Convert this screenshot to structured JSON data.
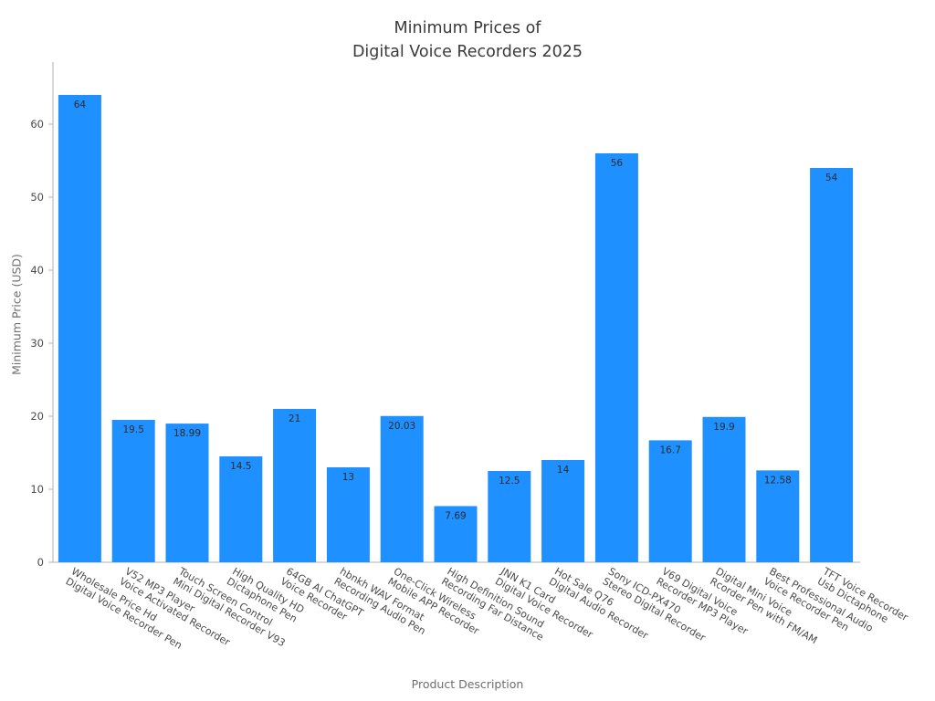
{
  "figure": {
    "title_lines": [
      "Minimum Prices of",
      "Digital Voice Recorders 2025"
    ],
    "xlabel": "Product Description",
    "ylabel": "Minimum Price (USD)"
  },
  "chart_data": {
    "type": "bar",
    "title": "Minimum Prices of\nDigital Voice Recorders 2025",
    "xlabel": "Product Description",
    "ylabel": "Minimum Price (USD)",
    "ylim": [
      0,
      68
    ],
    "yticks": [
      0,
      10,
      20,
      30,
      40,
      50,
      60
    ],
    "ytick_labels": [
      "0",
      "10",
      "20",
      "30",
      "40",
      "50",
      "60"
    ],
    "grid": false,
    "legend": "none",
    "bar_color": "#1E90FF",
    "value_label_color": "#2b2b2b",
    "axis_color": "#b0b0b0",
    "tick_text_color": "#4a4a4a",
    "categories": [
      [
        "Wholesale Price Hd",
        "Digital Voice Recorder Pen"
      ],
      [
        "V52 MP3 Player",
        "Voice Activated Recorder"
      ],
      [
        "Touch Screen Control",
        "Mini Digital Recorder V93"
      ],
      [
        "High Quality HD",
        "Dictaphone Pen"
      ],
      [
        "64GB AI ChatGPT",
        "Voice Recorder"
      ],
      [
        "hbnkh WAV Format",
        "Recording Audio Pen"
      ],
      [
        "One-Click Wireless",
        "Mobile APP Recorder"
      ],
      [
        "High Definition Sound",
        "Recording Far Distance"
      ],
      [
        "JNN K1 Card",
        "Digital Voice Recorder"
      ],
      [
        "Hot Sale Q76",
        "Digital Audio Recorder"
      ],
      [
        "Sony ICD-PX470",
        "Stereo Digital Recorder"
      ],
      [
        "V69 Digital Voice",
        "Recorder MP3 Player"
      ],
      [
        "Digital Mini Voice",
        "Rcorder Pen with FM/AM"
      ],
      [
        "Best Professional Audio",
        "Voice Recorder Pen"
      ],
      [
        "TFT Voice Recorder",
        "Usb Dictaphone"
      ]
    ],
    "values": [
      64,
      19.5,
      18.99,
      14.5,
      21,
      13,
      20.03,
      7.69,
      12.5,
      14,
      56,
      16.7,
      19.9,
      12.58,
      54
    ],
    "value_labels": [
      "64",
      "19.5",
      "18.99",
      "14.5",
      "21",
      "13",
      "20.03",
      "7.69",
      "12.5",
      "14",
      "56",
      "16.7",
      "19.9",
      "12.58",
      "54"
    ]
  }
}
